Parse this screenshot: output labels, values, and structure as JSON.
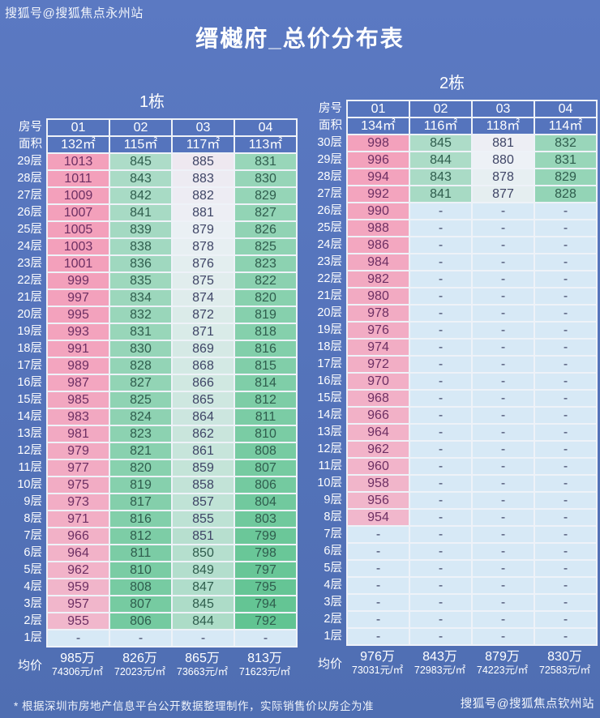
{
  "page": {
    "watermark_top": "搜狐号@搜狐焦点永州站",
    "title": "缙樾府_总价分布表",
    "footnote": "* 根据深圳市房地产信息平台公开数据整理制作，实际销售价以房企为准",
    "watermark_bottom": "搜狐号@搜狐焦点钦州站"
  },
  "labels": {
    "room_header": "房号",
    "area_header": "面积",
    "avg_header": "均价"
  },
  "colors": {
    "background": "#5473ba",
    "grid_border": "#eef2f8",
    "header_cell": "#5574bd",
    "empty_cell": "#d7e9f6",
    "scale_green": "#61c492",
    "scale_white": "#edf1f6",
    "scale_pink": "#f3a0bb",
    "text_dark": "#3f4566",
    "text_on_pink": "#6d2f63",
    "text_on_green": "#2f5d4d",
    "label_text": "#ffffff"
  },
  "color_scale": {
    "min": 792,
    "mid": 880,
    "max": 1000
  },
  "chart_data": {
    "type": "table",
    "title": "缙樾府_总价分布表",
    "note": "values are total prices in 万 (10k CNY); '-' means not listed"
  },
  "buildings": [
    {
      "name": "1栋",
      "units": [
        "01",
        "02",
        "03",
        "04"
      ],
      "areas": [
        "132㎡",
        "115㎡",
        "117㎡",
        "113㎡"
      ],
      "floors": [
        {
          "floor": "29层",
          "values": [
            1013,
            845,
            885,
            831
          ]
        },
        {
          "floor": "28层",
          "values": [
            1011,
            843,
            883,
            830
          ]
        },
        {
          "floor": "27层",
          "values": [
            1009,
            842,
            882,
            829
          ]
        },
        {
          "floor": "26层",
          "values": [
            1007,
            841,
            881,
            827
          ]
        },
        {
          "floor": "25层",
          "values": [
            1005,
            839,
            879,
            826
          ]
        },
        {
          "floor": "24层",
          "values": [
            1003,
            838,
            878,
            825
          ]
        },
        {
          "floor": "23层",
          "values": [
            1001,
            836,
            876,
            823
          ]
        },
        {
          "floor": "22层",
          "values": [
            999,
            835,
            875,
            822
          ]
        },
        {
          "floor": "21层",
          "values": [
            997,
            834,
            874,
            820
          ]
        },
        {
          "floor": "20层",
          "values": [
            995,
            832,
            872,
            819
          ]
        },
        {
          "floor": "19层",
          "values": [
            993,
            831,
            871,
            818
          ]
        },
        {
          "floor": "18层",
          "values": [
            991,
            830,
            869,
            816
          ]
        },
        {
          "floor": "17层",
          "values": [
            989,
            828,
            868,
            815
          ]
        },
        {
          "floor": "16层",
          "values": [
            987,
            827,
            866,
            814
          ]
        },
        {
          "floor": "15层",
          "values": [
            985,
            825,
            865,
            812
          ]
        },
        {
          "floor": "14层",
          "values": [
            983,
            824,
            864,
            811
          ]
        },
        {
          "floor": "13层",
          "values": [
            981,
            823,
            862,
            810
          ]
        },
        {
          "floor": "12层",
          "values": [
            979,
            821,
            861,
            808
          ]
        },
        {
          "floor": "11层",
          "values": [
            977,
            820,
            859,
            807
          ]
        },
        {
          "floor": "10层",
          "values": [
            975,
            819,
            858,
            806
          ]
        },
        {
          "floor": "9层",
          "values": [
            973,
            817,
            857,
            804
          ]
        },
        {
          "floor": "8层",
          "values": [
            971,
            816,
            855,
            803
          ]
        },
        {
          "floor": "7层",
          "values": [
            966,
            812,
            851,
            799
          ]
        },
        {
          "floor": "6层",
          "values": [
            964,
            811,
            850,
            798
          ]
        },
        {
          "floor": "5层",
          "values": [
            962,
            810,
            849,
            797
          ]
        },
        {
          "floor": "4层",
          "values": [
            959,
            808,
            847,
            795
          ]
        },
        {
          "floor": "3层",
          "values": [
            957,
            807,
            845,
            794
          ]
        },
        {
          "floor": "2层",
          "values": [
            955,
            806,
            844,
            792
          ]
        },
        {
          "floor": "1层",
          "values": [
            "-",
            "-",
            "-",
            "-"
          ]
        }
      ],
      "avg": [
        {
          "total": "985万",
          "per_sqm": "74306元/㎡"
        },
        {
          "total": "826万",
          "per_sqm": "72023元/㎡"
        },
        {
          "total": "865万",
          "per_sqm": "73663元/㎡"
        },
        {
          "total": "813万",
          "per_sqm": "71623元/㎡"
        }
      ]
    },
    {
      "name": "2栋",
      "units": [
        "01",
        "02",
        "03",
        "04"
      ],
      "areas": [
        "134㎡",
        "116㎡",
        "118㎡",
        "114㎡"
      ],
      "floors": [
        {
          "floor": "30层",
          "values": [
            998,
            845,
            881,
            832
          ]
        },
        {
          "floor": "29层",
          "values": [
            996,
            844,
            880,
            831
          ]
        },
        {
          "floor": "28层",
          "values": [
            994,
            843,
            878,
            829
          ]
        },
        {
          "floor": "27层",
          "values": [
            992,
            841,
            877,
            828
          ]
        },
        {
          "floor": "26层",
          "values": [
            990,
            "-",
            "-",
            "-"
          ]
        },
        {
          "floor": "25层",
          "values": [
            988,
            "-",
            "-",
            "-"
          ]
        },
        {
          "floor": "24层",
          "values": [
            986,
            "-",
            "-",
            "-"
          ]
        },
        {
          "floor": "23层",
          "values": [
            984,
            "-",
            "-",
            "-"
          ]
        },
        {
          "floor": "22层",
          "values": [
            982,
            "-",
            "-",
            "-"
          ]
        },
        {
          "floor": "21层",
          "values": [
            980,
            "-",
            "-",
            "-"
          ]
        },
        {
          "floor": "20层",
          "values": [
            978,
            "-",
            "-",
            "-"
          ]
        },
        {
          "floor": "19层",
          "values": [
            976,
            "-",
            "-",
            "-"
          ]
        },
        {
          "floor": "18层",
          "values": [
            974,
            "-",
            "-",
            "-"
          ]
        },
        {
          "floor": "17层",
          "values": [
            972,
            "-",
            "-",
            "-"
          ]
        },
        {
          "floor": "16层",
          "values": [
            970,
            "-",
            "-",
            "-"
          ]
        },
        {
          "floor": "15层",
          "values": [
            968,
            "-",
            "-",
            "-"
          ]
        },
        {
          "floor": "14层",
          "values": [
            966,
            "-",
            "-",
            "-"
          ]
        },
        {
          "floor": "13层",
          "values": [
            964,
            "-",
            "-",
            "-"
          ]
        },
        {
          "floor": "12层",
          "values": [
            962,
            "-",
            "-",
            "-"
          ]
        },
        {
          "floor": "11层",
          "values": [
            960,
            "-",
            "-",
            "-"
          ]
        },
        {
          "floor": "10层",
          "values": [
            958,
            "-",
            "-",
            "-"
          ]
        },
        {
          "floor": "9层",
          "values": [
            956,
            "-",
            "-",
            "-"
          ]
        },
        {
          "floor": "8层",
          "values": [
            954,
            "-",
            "-",
            "-"
          ]
        },
        {
          "floor": "7层",
          "values": [
            "-",
            "-",
            "-",
            "-"
          ]
        },
        {
          "floor": "6层",
          "values": [
            "-",
            "-",
            "-",
            "-"
          ]
        },
        {
          "floor": "5层",
          "values": [
            "-",
            "-",
            "-",
            "-"
          ]
        },
        {
          "floor": "4层",
          "values": [
            "-",
            "-",
            "-",
            "-"
          ]
        },
        {
          "floor": "3层",
          "values": [
            "-",
            "-",
            "-",
            "-"
          ]
        },
        {
          "floor": "2层",
          "values": [
            "-",
            "-",
            "-",
            "-"
          ]
        },
        {
          "floor": "1层",
          "values": [
            "-",
            "-",
            "-",
            "-"
          ]
        }
      ],
      "avg": [
        {
          "total": "976万",
          "per_sqm": "73031元/㎡"
        },
        {
          "total": "843万",
          "per_sqm": "72983元/㎡"
        },
        {
          "total": "879万",
          "per_sqm": "74223元/㎡"
        },
        {
          "total": "830万",
          "per_sqm": "72583元/㎡"
        }
      ]
    }
  ]
}
